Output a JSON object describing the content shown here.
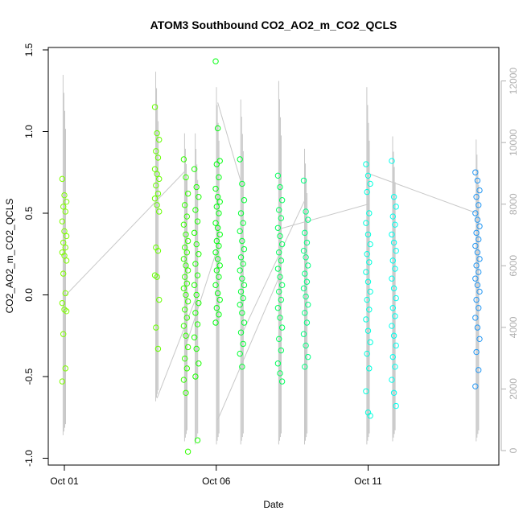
{
  "chart_data": {
    "type": "scatter",
    "title": "ATOM3 Southbound CO2_AO2_m_CO2_QCLS",
    "xlabel": "Date",
    "ylabel": "CO2_AO2_m_CO2_QCLS",
    "xlim": [
      0,
      15.2
    ],
    "ylim": [
      -1.0,
      1.5
    ],
    "y2lim": [
      0,
      12500
    ],
    "x_ticks": [
      {
        "value": 0,
        "label": "Oct 01"
      },
      {
        "value": 5,
        "label": "Oct 06"
      },
      {
        "value": 10,
        "label": "Oct 11"
      }
    ],
    "y_ticks": [
      -1.0,
      -0.5,
      0.0,
      0.5,
      1.0,
      1.5
    ],
    "y_tick_labels": [
      "-1.0",
      "-0.5",
      "0.0",
      "0.5",
      "1.0",
      "1.5"
    ],
    "y2_ticks": [
      0,
      2000,
      4000,
      6000,
      8000,
      10000,
      12000
    ],
    "y2_tick_labels": [
      "0",
      "2000",
      "4000",
      "6000",
      "8000",
      "10000",
      "12000"
    ],
    "series": [
      {
        "marker": "circle-open",
        "color": "#7fff00",
        "x": 0.0,
        "y": [
          0.71,
          0.61,
          0.57,
          0.54,
          0.51,
          0.45,
          0.39,
          0.36,
          0.32,
          0.29,
          0.26,
          0.24,
          0.21,
          0.13,
          0.01,
          -0.05,
          -0.09,
          -0.1,
          -0.24,
          -0.45,
          -0.53
        ]
      },
      {
        "marker": "circle-open",
        "color": "#66ff00",
        "x": 3.05,
        "y": [
          1.15,
          0.99,
          0.95,
          0.88,
          0.84,
          0.77,
          0.74,
          0.71,
          0.67,
          0.62,
          0.59,
          0.55,
          0.51,
          0.29,
          0.27,
          0.12,
          0.11,
          -0.03,
          -0.2,
          -0.33
        ]
      },
      {
        "marker": "circle-open",
        "color": "#33ff00",
        "x": 4.0,
        "y": [
          0.83,
          0.72,
          0.62,
          0.55,
          0.48,
          0.43,
          0.37,
          0.33,
          0.29,
          0.26,
          0.22,
          0.18,
          0.15,
          0.11,
          0.07,
          0.04,
          0.0,
          -0.04,
          -0.09,
          -0.14,
          -0.19,
          -0.25,
          -0.32,
          -0.39,
          -0.45,
          -0.52,
          -0.6,
          -0.96
        ]
      },
      {
        "marker": "circle-open",
        "color": "#1aff00",
        "x": 4.35,
        "y": [
          0.77,
          0.66,
          0.6,
          0.52,
          0.45,
          0.38,
          0.31,
          0.25,
          0.19,
          0.12,
          0.06,
          0.0,
          -0.05,
          -0.11,
          -0.18,
          -0.26,
          -0.33,
          -0.42,
          -0.5,
          -0.89
        ]
      },
      {
        "marker": "circle-open",
        "color": "#00ff0d",
        "x": 5.05,
        "y": [
          1.43,
          1.02,
          0.82,
          0.8,
          0.72,
          0.65,
          0.6,
          0.57,
          0.54,
          0.5,
          0.44,
          0.41,
          0.37,
          0.33,
          0.3,
          0.26,
          0.22,
          0.18,
          0.15,
          0.11,
          0.06,
          0.01,
          -0.03,
          -0.08,
          -0.12,
          -0.17
        ]
      },
      {
        "marker": "circle-open",
        "color": "#00ff33",
        "x": 5.85,
        "y": [
          0.83,
          0.68,
          0.58,
          0.5,
          0.44,
          0.39,
          0.33,
          0.28,
          0.23,
          0.19,
          0.15,
          0.1,
          0.06,
          0.02,
          -0.02,
          -0.06,
          -0.11,
          -0.17,
          -0.23,
          -0.3,
          -0.36,
          -0.44
        ]
      },
      {
        "marker": "circle-open",
        "color": "#00ff5a",
        "x": 7.1,
        "y": [
          0.73,
          0.66,
          0.58,
          0.52,
          0.47,
          0.41,
          0.36,
          0.31,
          0.26,
          0.21,
          0.16,
          0.11,
          0.06,
          0.02,
          -0.03,
          -0.08,
          -0.14,
          -0.2,
          -0.27,
          -0.34,
          -0.42,
          -0.48,
          -0.53
        ]
      },
      {
        "marker": "circle-open",
        "color": "#00ff80",
        "x": 7.95,
        "y": [
          0.7,
          0.51,
          0.46,
          0.38,
          0.32,
          0.27,
          0.23,
          0.18,
          0.13,
          0.08,
          0.04,
          -0.01,
          -0.06,
          -0.11,
          -0.17,
          -0.24,
          -0.31,
          -0.38,
          -0.44
        ]
      },
      {
        "marker": "circle-open",
        "color": "#00ffdd",
        "x": 10.0,
        "y": [
          0.8,
          0.73,
          0.68,
          0.63,
          0.5,
          0.44,
          0.37,
          0.31,
          0.25,
          0.2,
          0.14,
          0.08,
          0.02,
          -0.03,
          -0.09,
          -0.15,
          -0.22,
          -0.29,
          -0.36,
          -0.45,
          -0.59,
          -0.72,
          -0.74
        ]
      },
      {
        "marker": "circle-open",
        "color": "#00ffee",
        "x": 10.85,
        "y": [
          0.82,
          0.6,
          0.54,
          0.48,
          0.43,
          0.37,
          0.32,
          0.27,
          0.21,
          0.16,
          0.1,
          0.04,
          -0.02,
          -0.08,
          -0.13,
          -0.19,
          -0.25,
          -0.31,
          -0.38,
          -0.44,
          -0.52,
          -0.6,
          -0.68
        ]
      },
      {
        "marker": "circle-open",
        "color": "#2196f3",
        "x": 13.6,
        "y": [
          0.75,
          0.7,
          0.64,
          0.6,
          0.55,
          0.5,
          0.46,
          0.42,
          0.38,
          0.34,
          0.3,
          0.26,
          0.22,
          0.18,
          0.14,
          0.1,
          0.06,
          0.02,
          -0.03,
          -0.08,
          -0.14,
          -0.2,
          -0.27,
          -0.35,
          -0.46,
          -0.56
        ]
      }
    ],
    "altitude_series": {
      "color": "#c8c8c8",
      "axis": "right",
      "segments": [
        {
          "x": 0.0,
          "min": 500,
          "max": 12200
        },
        {
          "x": 3.05,
          "min": 1600,
          "max": 12300
        },
        {
          "x": 4.0,
          "min": 300,
          "max": 10300
        },
        {
          "x": 4.35,
          "min": 200,
          "max": 10300
        },
        {
          "x": 5.05,
          "min": 200,
          "max": 11800
        },
        {
          "x": 5.85,
          "min": 200,
          "max": 11400
        },
        {
          "x": 7.1,
          "min": 200,
          "max": 12000
        },
        {
          "x": 7.95,
          "min": 200,
          "max": 9800
        },
        {
          "x": 10.0,
          "min": 200,
          "max": 11800
        },
        {
          "x": 10.85,
          "min": 300,
          "max": 10200
        },
        {
          "x": 13.6,
          "min": 300,
          "max": 10100
        }
      ],
      "connectors": [
        [
          0.0,
          5000,
          4.0,
          9100
        ],
        [
          3.05,
          1700,
          4.35,
          5000
        ],
        [
          4.0,
          3400,
          5.05,
          6600
        ],
        [
          5.05,
          11300,
          5.85,
          8600
        ],
        [
          5.05,
          1000,
          7.1,
          5700
        ],
        [
          5.85,
          3800,
          7.95,
          8200
        ],
        [
          7.1,
          7200,
          10.0,
          8000
        ],
        [
          10.0,
          9000,
          13.6,
          7700
        ]
      ]
    },
    "grid": false,
    "legend": "none"
  }
}
